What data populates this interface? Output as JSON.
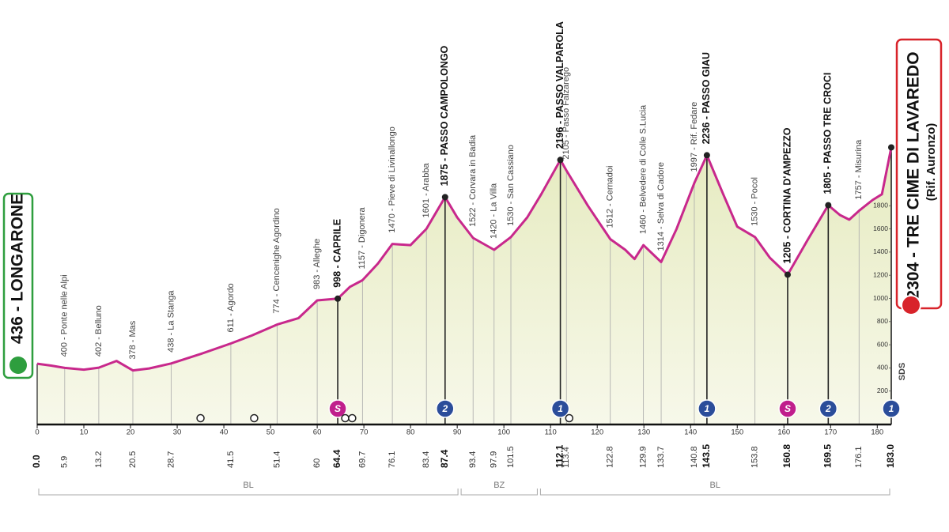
{
  "chart_data": {
    "type": "area",
    "color": "#c8288c",
    "fill": "#eef0d4",
    "xlim": [
      0,
      183
    ],
    "ylim": [
      0,
      2000
    ],
    "xticks": [
      0,
      10,
      20,
      30,
      40,
      50,
      60,
      70,
      80,
      90,
      100,
      110,
      120,
      130,
      140,
      150,
      160,
      170,
      180
    ],
    "yticks": [
      200,
      400,
      600,
      800,
      1000,
      1200,
      1400,
      1600,
      1800
    ],
    "x": [
      0,
      3,
      5.9,
      10,
      13.2,
      17,
      20.5,
      24,
      28.7,
      35,
      41.5,
      46,
      51.4,
      56,
      60,
      64.4,
      67,
      69.7,
      73,
      76.1,
      80,
      83.4,
      87.4,
      90,
      93.4,
      97.9,
      101.5,
      105,
      108,
      112.1,
      113.4,
      118,
      122.8,
      126,
      128,
      129.9,
      133.7,
      137,
      140.8,
      143.5,
      147,
      150,
      153.8,
      157,
      160.8,
      165,
      169.5,
      172,
      174,
      176.1,
      179,
      181,
      183
    ],
    "values": [
      436,
      420,
      400,
      385,
      402,
      460,
      378,
      395,
      438,
      520,
      611,
      680,
      774,
      830,
      983,
      998,
      1100,
      1157,
      1300,
      1470,
      1460,
      1601,
      1875,
      1700,
      1522,
      1420,
      1530,
      1700,
      1900,
      2196,
      2105,
      1800,
      1512,
      1420,
      1340,
      1460,
      1314,
      1600,
      1997,
      2236,
      1900,
      1620,
      1530,
      1350,
      1205,
      1500,
      1805,
      1720,
      1680,
      1757,
      1850,
      1900,
      2304
    ],
    "start": {
      "label": "436 - LONGARONE",
      "km": {
        "value": 0,
        "label": "0.0"
      },
      "altitude": 436
    },
    "finish": {
      "label": "2304 - TRE CIME DI LAVAREDO",
      "sublabel": "(Rif. Auronzo)",
      "km": {
        "value": 183,
        "label": "183.0"
      },
      "altitude": 2304,
      "badge": "1",
      "badge_color": "#2b4d9a"
    },
    "waypoints": [
      {
        "label": "400 - Ponte nelle Alpi",
        "km": 5.9,
        "altitude": 400
      },
      {
        "label": "402 - Belluno",
        "km": 13.2,
        "altitude": 402
      },
      {
        "label": "378 - Mas",
        "km": 20.5,
        "altitude": 378
      },
      {
        "label": "438 - La Stanga",
        "km": 28.7,
        "altitude": 438
      },
      {
        "label": "611 - Agordo",
        "km": 41.5,
        "altitude": 611
      },
      {
        "label": "774 - Cencenighe Agordino",
        "km": 51.4,
        "altitude": 774
      },
      {
        "label": "983 - Alleghe",
        "km": 60,
        "altitude": 983
      },
      {
        "label": "998 - CAPRILE",
        "km": 64.4,
        "altitude": 998,
        "major": true,
        "badge": "S",
        "badge_color": "#c01e8c"
      },
      {
        "label": "1157 - Digonera",
        "km": 69.7,
        "altitude": 1157
      },
      {
        "label": "1470 - Pieve di Livinallongo",
        "km": 76.1,
        "altitude": 1470
      },
      {
        "label": "1601 - Arabba",
        "km": 83.4,
        "altitude": 1601
      },
      {
        "label": "1875 - PASSO CAMPOLONGO",
        "km": 87.4,
        "altitude": 1875,
        "major": true,
        "badge": "2",
        "badge_color": "#2b4d9a"
      },
      {
        "label": "1522 - Corvara in Badia",
        "km": 93.4,
        "altitude": 1522
      },
      {
        "label": "1420 - La Villa",
        "km": 97.9,
        "altitude": 1420
      },
      {
        "label": "1530 - San Cassiano",
        "km": 101.5,
        "altitude": 1530
      },
      {
        "label": "2196 - PASSO VALPAROLA",
        "km": 112.1,
        "altitude": 2196,
        "major": true,
        "badge": "1",
        "badge_color": "#2b4d9a"
      },
      {
        "label": "2105 - Passo Falzarego",
        "km": 113.4,
        "altitude": 2105
      },
      {
        "label": "1512 - Cernadoi",
        "km": 122.8,
        "altitude": 1512
      },
      {
        "label": "1460 - Belvedere di Colle S.Lucia",
        "km": 129.9,
        "altitude": 1460
      },
      {
        "label": "1314 - Selva di Cadore",
        "km": 133.7,
        "altitude": 1314
      },
      {
        "label": "1997 - Rif. Fedare",
        "km": 140.8,
        "altitude": 1997
      },
      {
        "label": "2236 - PASSO GIAU",
        "km": 143.5,
        "altitude": 2236,
        "major": true,
        "badge": "1",
        "badge_color": "#2b4d9a"
      },
      {
        "label": "1530 - Pocol",
        "km": 153.8,
        "altitude": 1530
      },
      {
        "label": "1205 - CORTINA D'AMPEZZO",
        "km": 160.8,
        "altitude": 1205,
        "major": true,
        "badge": "S",
        "badge_color": "#c01e8c"
      },
      {
        "label": "1805 - PASSO TRE CROCI",
        "km": 169.5,
        "altitude": 1805,
        "major": true,
        "badge": "2",
        "badge_color": "#2b4d9a"
      },
      {
        "label": "1757 - Misurina",
        "km": 176.1,
        "altitude": 1757
      }
    ],
    "regions": [
      {
        "label": "BL",
        "from": 0,
        "to": 90.5
      },
      {
        "label": "BZ",
        "from": 90.5,
        "to": 107.5
      },
      {
        "label": "BL",
        "from": 107.5,
        "to": 183
      }
    ],
    "logo": "SDS"
  }
}
